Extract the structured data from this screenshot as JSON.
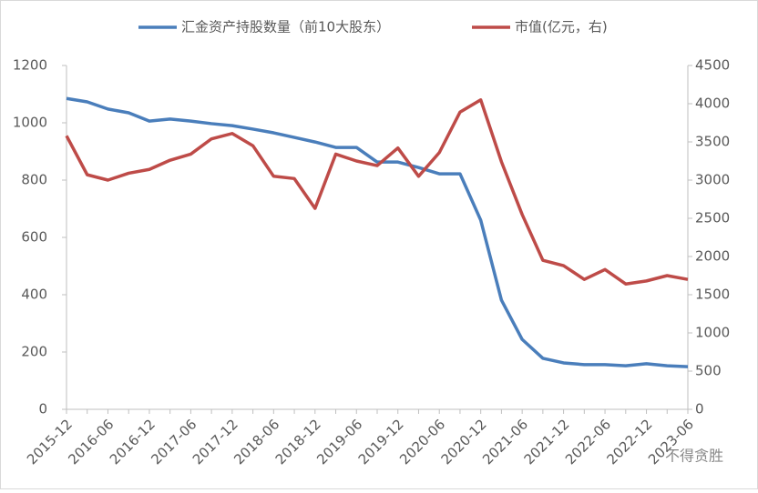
{
  "chart_data": {
    "type": "line",
    "categories": [
      "2015-12",
      null,
      "2016-06",
      null,
      "2016-12",
      null,
      "2017-06",
      null,
      "2017-12",
      null,
      "2018-06",
      null,
      "2018-12",
      null,
      "2019-06",
      null,
      "2019-12",
      null,
      "2020-06",
      null,
      "2020-12",
      null,
      "2021-06",
      null,
      "2021-12",
      null,
      "2022-06",
      null,
      "2022-12",
      null,
      "2023-06"
    ],
    "series": [
      {
        "name": "汇金资产持股数量（前10大股东）",
        "color": "#4a7ebb",
        "values": [
          1085,
          1073,
          1048,
          1035,
          1006,
          1013,
          1006,
          997,
          990,
          978,
          965,
          949,
          933,
          914,
          914,
          863,
          863,
          844,
          822,
          822,
          660,
          381,
          244,
          178,
          162,
          156,
          156,
          152,
          159,
          152,
          149
        ]
      },
      {
        "name": "市值(亿元，右)",
        "color": "#be4b48",
        "axis": "y2",
        "values": [
          3580,
          3070,
          3000,
          3090,
          3140,
          3260,
          3340,
          3540,
          3610,
          3450,
          3050,
          3020,
          2630,
          3340,
          3250,
          3190,
          3420,
          3050,
          3360,
          3890,
          4050,
          3240,
          2550,
          1950,
          1880,
          1700,
          1830,
          1640,
          1680,
          1750,
          1700
        ]
      }
    ],
    "ylim": [
      0,
      1200
    ],
    "yticks": [
      0,
      200,
      400,
      600,
      800,
      1000,
      1200
    ],
    "y2lim": [
      0,
      4500
    ],
    "y2ticks": [
      0,
      500,
      1000,
      1500,
      2000,
      2500,
      3000,
      3500,
      4000,
      4500
    ],
    "grid": false,
    "legend": "top",
    "watermark": "不得贪胜"
  }
}
